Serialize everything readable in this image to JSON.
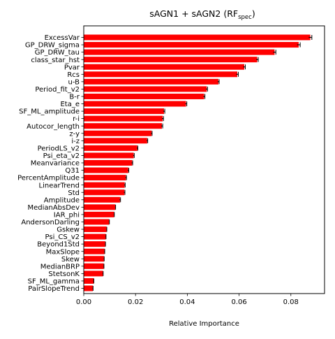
{
  "chart_data": {
    "type": "bar",
    "orientation": "horizontal",
    "title": {
      "prefix": "sAGN1 + sAGN2 (RF",
      "subscript": "spec",
      "suffix": ")"
    },
    "xlabel": "Relative Importance",
    "ylabel": "",
    "xlim": [
      0,
      0.093
    ],
    "xticks": [
      0.0,
      0.02,
      0.04,
      0.06,
      0.08
    ],
    "xtick_labels": [
      "0.00",
      "0.02",
      "0.04",
      "0.06",
      "0.08"
    ],
    "grid": false,
    "bar_color": "#ff0000",
    "errorbar_color": "#000000",
    "categories": [
      "ExcessVar",
      "GP_DRW_sigma",
      "GP_DRW_tau",
      "class_star_hst",
      "Pvar",
      "Rcs",
      "u-B",
      "Period_fit_v2",
      "B-r",
      "Eta_e",
      "SF_ML_amplitude",
      "r-i",
      "Autocor_length",
      "z-y",
      "i-z",
      "PeriodLS_v2",
      "Psi_eta_v2",
      "Meanvariance",
      "Q31",
      "PercentAmplitude",
      "LinearTrend",
      "Std",
      "Amplitude",
      "MedianAbsDev",
      "IAR_phi",
      "AndersonDarling",
      "Gskew",
      "Psi_CS_v2",
      "Beyond1Std",
      "MaxSlope",
      "Skew",
      "MedianBRP",
      "StetsonK",
      "SF_ML_gamma",
      "PairSlopeTrend"
    ],
    "values": [
      0.0875,
      0.083,
      0.0737,
      0.067,
      0.062,
      0.0593,
      0.052,
      0.0475,
      0.0465,
      0.0395,
      0.031,
      0.0305,
      0.0302,
      0.0262,
      0.0245,
      0.0207,
      0.0193,
      0.0187,
      0.0172,
      0.0163,
      0.0158,
      0.0157,
      0.014,
      0.0122,
      0.0117,
      0.0098,
      0.0088,
      0.0085,
      0.0083,
      0.008,
      0.0078,
      0.0077,
      0.0074,
      0.0038,
      0.0035
    ],
    "errors": [
      0.0006,
      0.0006,
      0.0005,
      0.0004,
      0.0004,
      0.0004,
      0.0003,
      0.0003,
      0.0003,
      0.0003,
      0.0003,
      0.0003,
      0.0003,
      0.0002,
      0.0002,
      0.0002,
      0.0002,
      0.0002,
      0.0002,
      0.0002,
      0.0002,
      0.0002,
      0.0002,
      0.0001,
      0.0001,
      0.0001,
      0.0001,
      0.0001,
      0.0001,
      0.0001,
      0.0001,
      0.0001,
      0.0001,
      0.0001,
      0.0001
    ]
  }
}
